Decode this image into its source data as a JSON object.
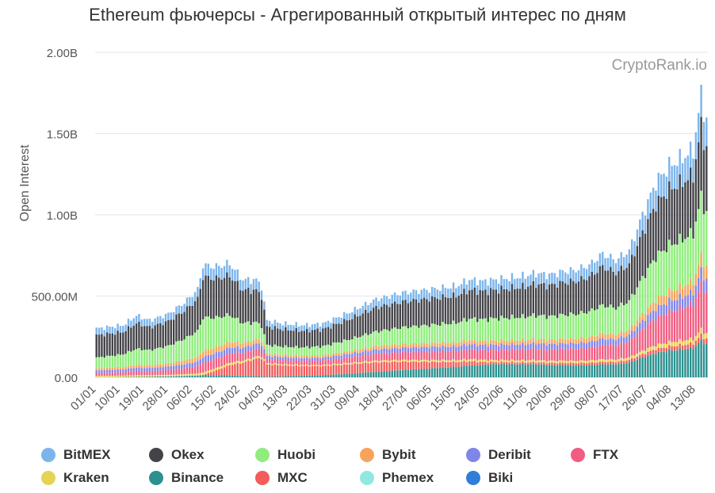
{
  "chart_data": {
    "type": "bar",
    "stacked": true,
    "title": "Ethereum фьючерсы - Агрегированный открытый интерес по дням",
    "watermark": "CryptoRank.io",
    "ylabel": "Open Interest",
    "ylim": [
      0,
      2000000000
    ],
    "y_ticks": [
      {
        "value": 0,
        "label": "0.00"
      },
      {
        "value": 500000000,
        "label": "500.00M"
      },
      {
        "value": 1000000000,
        "label": "1.00B"
      },
      {
        "value": 1500000000,
        "label": "1.50B"
      },
      {
        "value": 2000000000,
        "label": "2.00B"
      }
    ],
    "x_tick_labels": [
      "01/01",
      "10/01",
      "19/01",
      "28/01",
      "06/02",
      "15/02",
      "24/02",
      "04/03",
      "13/03",
      "22/03",
      "31/03",
      "09/04",
      "18/04",
      "27/04",
      "06/05",
      "15/05",
      "24/05",
      "02/06",
      "11/06",
      "20/06",
      "29/06",
      "08/07",
      "17/07",
      "26/07",
      "04/08",
      "13/08"
    ],
    "days": 230,
    "legend_order": [
      "BitMEX",
      "Okex",
      "Huobi",
      "Bybit",
      "Deribit",
      "FTX",
      "Kraken",
      "Binance",
      "MXC",
      "Phemex",
      "Biki"
    ],
    "stack_order": [
      "Binance",
      "Biki",
      "Phemex",
      "MXC",
      "Kraken",
      "FTX",
      "Deribit",
      "Bybit",
      "Huobi",
      "Okex",
      "BitMEX"
    ],
    "series_colors": {
      "BitMEX": "#7cb5ec",
      "Okex": "#434348",
      "Huobi": "#90ed7d",
      "Bybit": "#f7a35c",
      "Deribit": "#8085e9",
      "FTX": "#f15c80",
      "Kraken": "#e4d354",
      "Binance": "#2b908f",
      "MXC": "#f45b5b",
      "Phemex": "#91e8e1",
      "Biki": "#2f7ed8"
    },
    "key_points_total_M": [
      [
        0,
        300
      ],
      [
        10,
        320
      ],
      [
        15,
        380
      ],
      [
        20,
        350
      ],
      [
        27,
        390
      ],
      [
        33,
        460
      ],
      [
        38,
        540
      ],
      [
        40,
        690
      ],
      [
        45,
        680
      ],
      [
        50,
        700
      ],
      [
        55,
        600
      ],
      [
        60,
        600
      ],
      [
        62,
        560
      ],
      [
        64,
        350
      ],
      [
        70,
        330
      ],
      [
        78,
        320
      ],
      [
        85,
        330
      ],
      [
        95,
        400
      ],
      [
        105,
        480
      ],
      [
        115,
        520
      ],
      [
        125,
        540
      ],
      [
        135,
        560
      ],
      [
        140,
        600
      ],
      [
        145,
        590
      ],
      [
        150,
        600
      ],
      [
        155,
        610
      ],
      [
        160,
        620
      ],
      [
        165,
        640
      ],
      [
        170,
        630
      ],
      [
        175,
        650
      ],
      [
        180,
        660
      ],
      [
        185,
        690
      ],
      [
        190,
        760
      ],
      [
        195,
        720
      ],
      [
        200,
        780
      ],
      [
        205,
        1000
      ],
      [
        210,
        1200
      ],
      [
        215,
        1300
      ],
      [
        220,
        1350
      ],
      [
        224,
        1400
      ],
      [
        226,
        1620
      ],
      [
        227,
        1740
      ],
      [
        228,
        1650
      ],
      [
        229,
        1580
      ]
    ],
    "key_points_share": {
      "BitMEX": [
        [
          0,
          0.1
        ],
        [
          40,
          0.1
        ],
        [
          64,
          0.1
        ],
        [
          150,
          0.1
        ],
        [
          190,
          0.1
        ],
        [
          205,
          0.11
        ],
        [
          229,
          0.11
        ]
      ],
      "Okex": [
        [
          0,
          0.33
        ],
        [
          40,
          0.34
        ],
        [
          64,
          0.3
        ],
        [
          150,
          0.28
        ],
        [
          190,
          0.3
        ],
        [
          205,
          0.27
        ],
        [
          229,
          0.25
        ]
      ],
      "Huobi": [
        [
          0,
          0.16
        ],
        [
          40,
          0.28
        ],
        [
          64,
          0.14
        ],
        [
          150,
          0.22
        ],
        [
          190,
          0.22
        ],
        [
          205,
          0.22
        ],
        [
          229,
          0.21
        ]
      ],
      "Bybit": [
        [
          0,
          0.03
        ],
        [
          40,
          0.05
        ],
        [
          64,
          0.04
        ],
        [
          150,
          0.04
        ],
        [
          190,
          0.04
        ],
        [
          205,
          0.04
        ],
        [
          229,
          0.05
        ]
      ],
      "Deribit": [
        [
          0,
          0.04
        ],
        [
          40,
          0.05
        ],
        [
          64,
          0.05
        ],
        [
          150,
          0.05
        ],
        [
          190,
          0.05
        ],
        [
          205,
          0.05
        ],
        [
          229,
          0.05
        ]
      ],
      "FTX": [
        [
          0,
          0.04
        ],
        [
          40,
          0.08
        ],
        [
          64,
          0.07
        ],
        [
          150,
          0.1
        ],
        [
          190,
          0.11
        ],
        [
          205,
          0.13
        ],
        [
          229,
          0.16
        ]
      ],
      "Kraken": [
        [
          0,
          0.02
        ],
        [
          40,
          0.02
        ],
        [
          64,
          0.02
        ],
        [
          150,
          0.02
        ],
        [
          190,
          0.02
        ],
        [
          205,
          0.02
        ],
        [
          229,
          0.02
        ]
      ],
      "Binance": [
        [
          0,
          0.0
        ],
        [
          40,
          0.02
        ],
        [
          64,
          0.01
        ],
        [
          150,
          0.13
        ],
        [
          190,
          0.1
        ],
        [
          205,
          0.12
        ],
        [
          229,
          0.13
        ]
      ],
      "MXC": [
        [
          0,
          0.0
        ],
        [
          40,
          0.0
        ],
        [
          64,
          0.2
        ],
        [
          150,
          0.02
        ],
        [
          190,
          0.02
        ],
        [
          205,
          0.02
        ],
        [
          229,
          0.02
        ]
      ],
      "Phemex": [
        [
          0,
          0.0
        ],
        [
          40,
          0.0
        ],
        [
          64,
          0.0
        ],
        [
          150,
          0.0
        ],
        [
          190,
          0.0
        ],
        [
          205,
          0.0
        ],
        [
          229,
          0.0
        ]
      ],
      "Biki": [
        [
          0,
          0.0
        ],
        [
          40,
          0.0
        ],
        [
          64,
          0.0
        ],
        [
          150,
          0.0
        ],
        [
          190,
          0.0
        ],
        [
          205,
          0.0
        ],
        [
          229,
          0.0
        ]
      ]
    }
  }
}
